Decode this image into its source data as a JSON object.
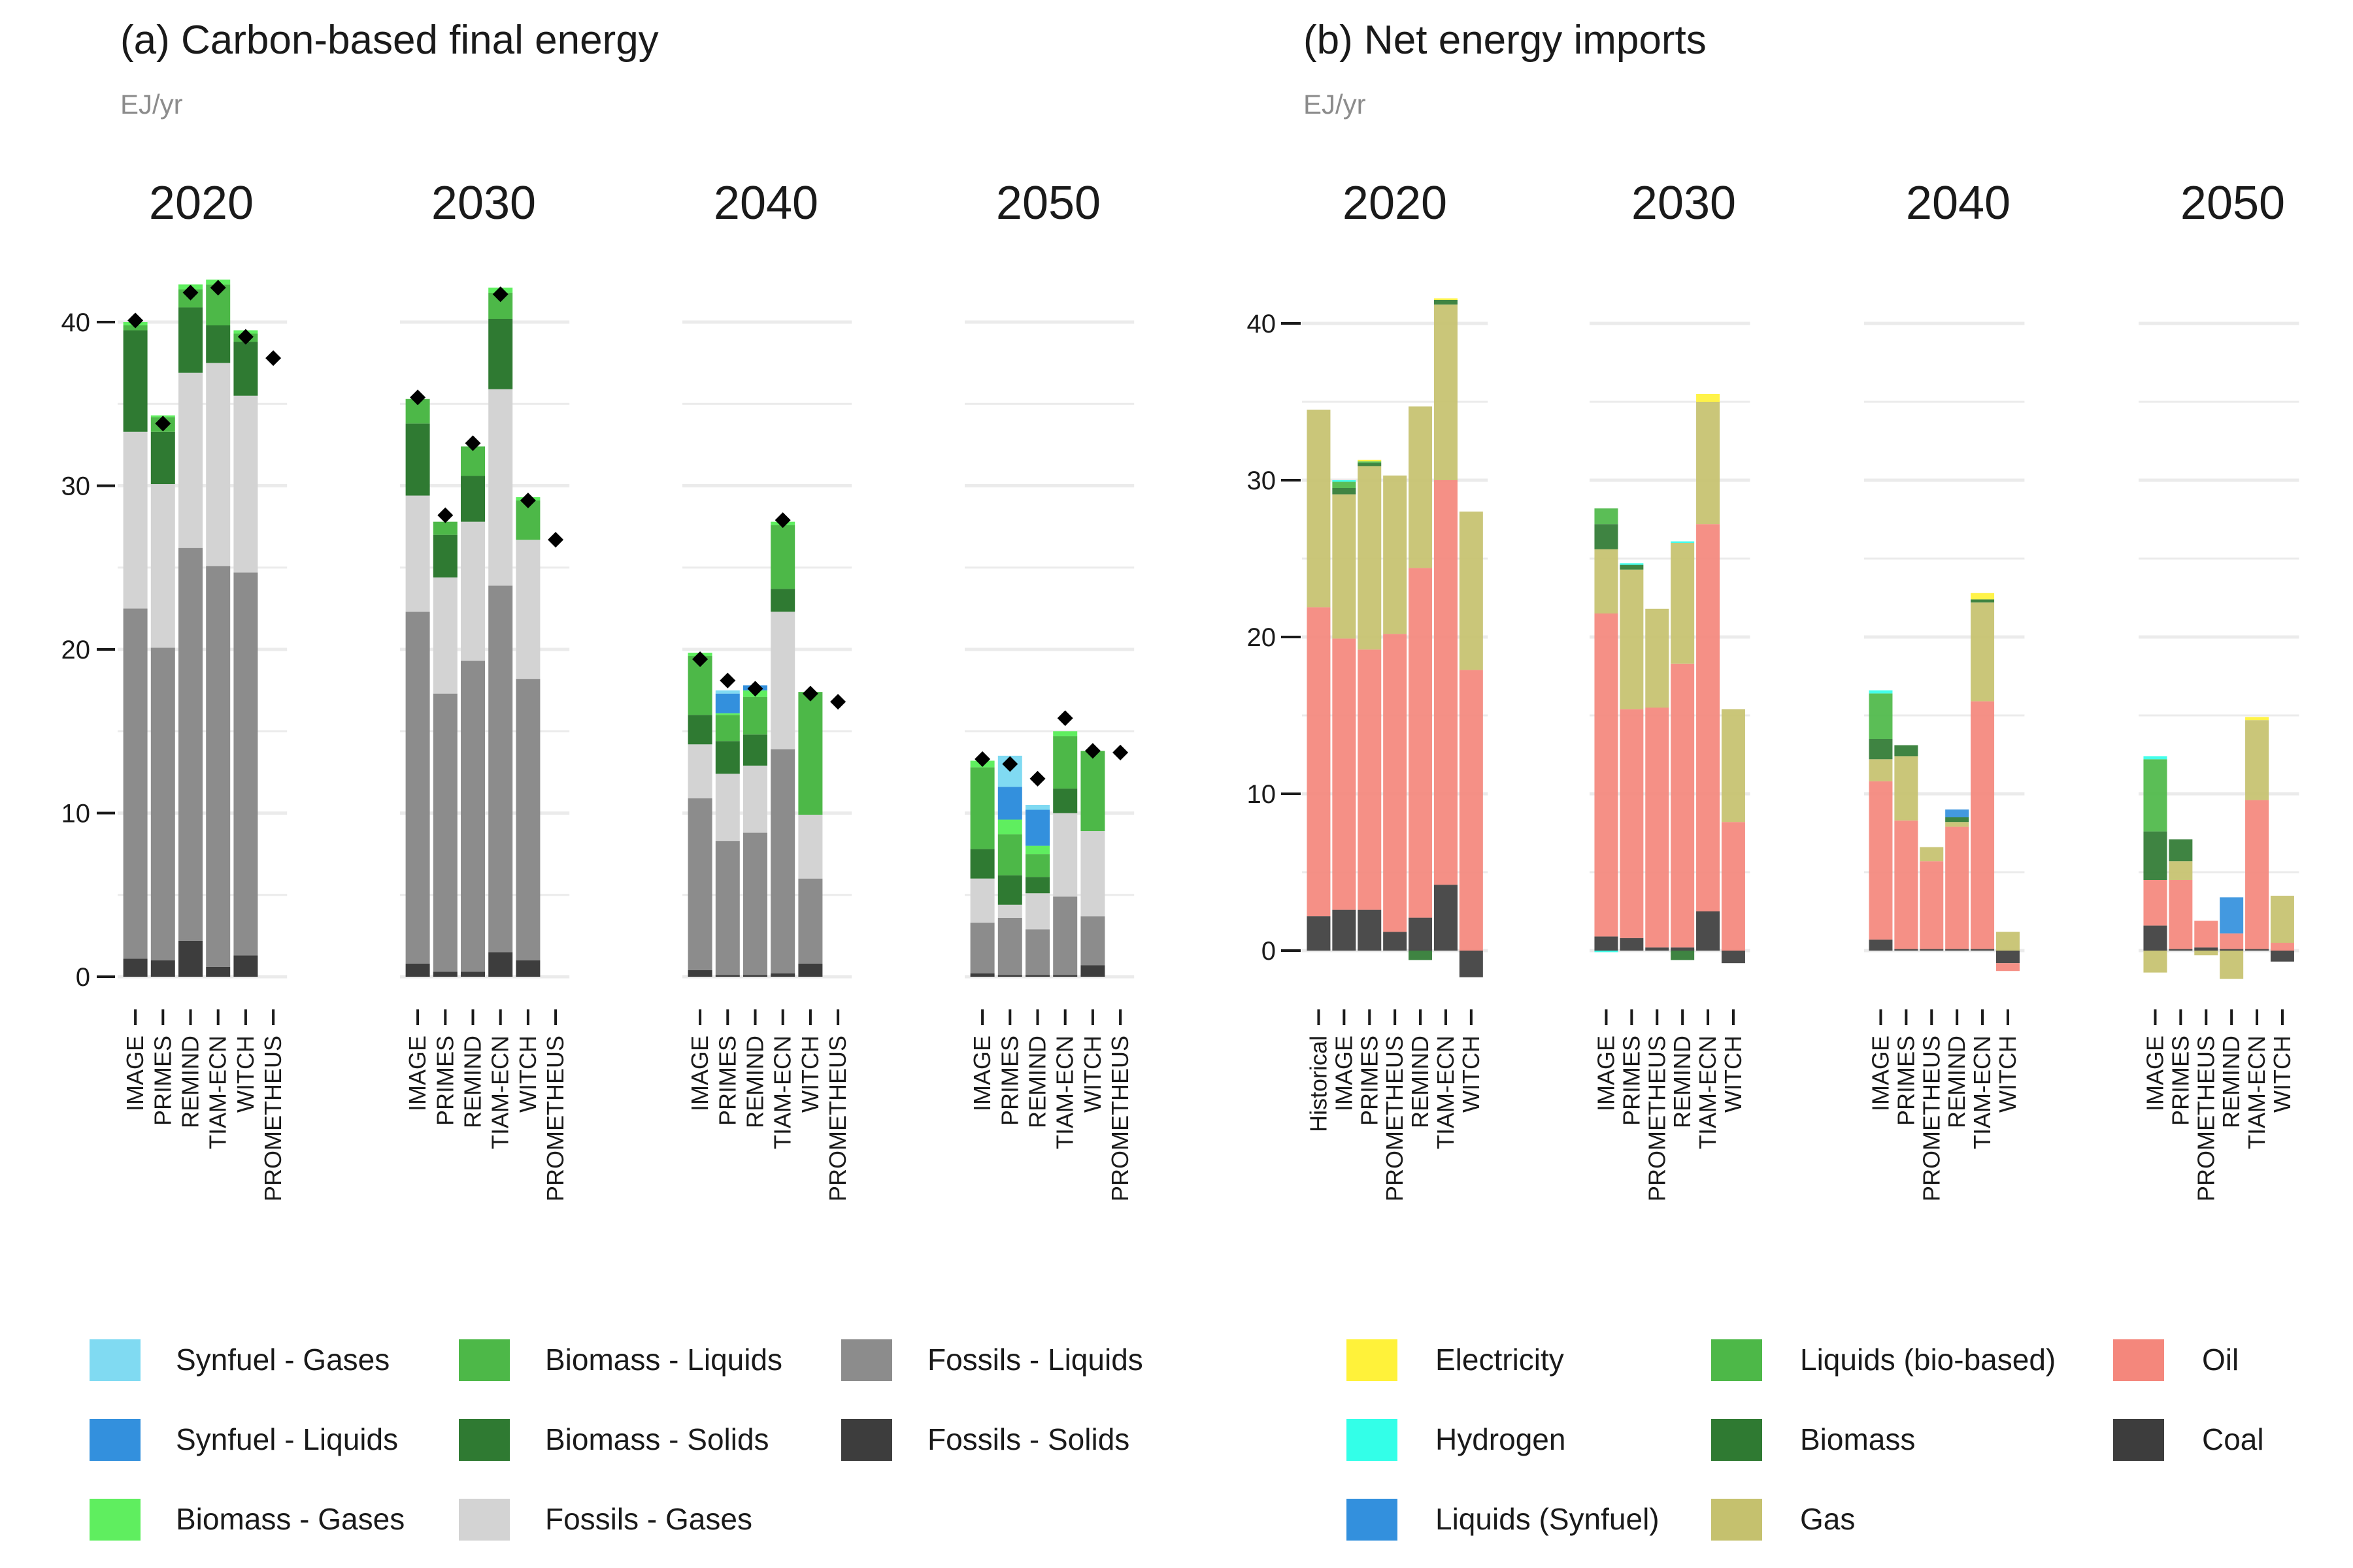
{
  "chart_data": [
    {
      "type": "bar",
      "stacked": true,
      "panel": "a",
      "title": "(a) Carbon-based final energy",
      "subtitle": "EJ/yr",
      "facets": [
        "2020",
        "2030",
        "2040",
        "2050"
      ],
      "categories": [
        "IMAGE",
        "PRIMES",
        "REMIND",
        "TIAM-ECN",
        "WITCH",
        "PROMETHEUS"
      ],
      "ylim": [
        0,
        40
      ],
      "yticks": [
        0,
        10,
        20,
        30,
        40
      ],
      "grid": true,
      "legend_position": "bottom",
      "total_marker": "diamond",
      "series": [
        {
          "name": "Fossils - Solids",
          "color": "#3d3d3d",
          "values": [
            [
              1.1,
              1.0,
              2.2,
              0.6,
              1.3,
              0
            ],
            [
              0.8,
              0.3,
              0.3,
              1.5,
              1.0,
              0
            ],
            [
              0.4,
              0.1,
              0.1,
              0.2,
              0.8,
              0
            ],
            [
              0.2,
              0.1,
              0.1,
              0.1,
              0.7,
              0
            ]
          ]
        },
        {
          "name": "Fossils - Liquids",
          "color": "#8c8c8c",
          "values": [
            [
              21.4,
              19.1,
              24.0,
              24.5,
              23.4,
              0
            ],
            [
              21.5,
              17.0,
              19.0,
              22.4,
              17.2,
              0
            ],
            [
              10.5,
              8.2,
              8.7,
              13.7,
              5.2,
              0
            ],
            [
              3.1,
              3.5,
              2.8,
              4.8,
              3.0,
              0
            ]
          ]
        },
        {
          "name": "Fossils - Gases",
          "color": "#d3d3d3",
          "values": [
            [
              10.8,
              10.0,
              10.7,
              12.4,
              10.8,
              0
            ],
            [
              7.1,
              7.1,
              8.5,
              12.0,
              8.5,
              0
            ],
            [
              3.3,
              4.1,
              4.1,
              8.4,
              3.9,
              0
            ],
            [
              2.7,
              0.8,
              2.2,
              5.1,
              5.2,
              0
            ]
          ]
        },
        {
          "name": "Biomass - Solids",
          "color": "#2f7a32",
          "values": [
            [
              6.2,
              3.2,
              4.0,
              2.3,
              3.3,
              0
            ],
            [
              4.4,
              2.6,
              2.8,
              4.3,
              0,
              0
            ],
            [
              1.8,
              2.0,
              1.9,
              1.4,
              0,
              0
            ],
            [
              1.8,
              1.8,
              1.0,
              1.5,
              0,
              0
            ]
          ]
        },
        {
          "name": "Biomass - Liquids",
          "color": "#4db848",
          "values": [
            [
              0.3,
              0.9,
              1.1,
              2.5,
              0.5,
              0
            ],
            [
              1.5,
              0.8,
              1.8,
              1.6,
              2.4,
              0
            ],
            [
              3.6,
              1.6,
              2.3,
              3.9,
              7.5,
              0
            ],
            [
              5.0,
              2.5,
              1.4,
              3.2,
              4.9,
              0
            ]
          ]
        },
        {
          "name": "Biomass - Gases",
          "color": "#5fee5f",
          "values": [
            [
              0.2,
              0.1,
              0.3,
              0.3,
              0.2,
              0
            ],
            [
              0,
              0,
              0,
              0.3,
              0.2,
              0
            ],
            [
              0.2,
              0.1,
              0.4,
              0.2,
              0,
              0
            ],
            [
              0.4,
              0.9,
              0.5,
              0.3,
              0,
              0
            ]
          ]
        },
        {
          "name": "Synfuel - Liquids",
          "color": "#3390dd",
          "values": [
            [
              0,
              0,
              0,
              0,
              0,
              0
            ],
            [
              0,
              0,
              0,
              0,
              0,
              0
            ],
            [
              0,
              1.2,
              0.3,
              0,
              0,
              0
            ],
            [
              0,
              2.0,
              2.2,
              0,
              0,
              0
            ]
          ]
        },
        {
          "name": "Synfuel - Gases",
          "color": "#80daf2",
          "values": [
            [
              0,
              0,
              0,
              0,
              0,
              0
            ],
            [
              0,
              0,
              0,
              0,
              0,
              0
            ],
            [
              0,
              0.2,
              0,
              0,
              0,
              0
            ],
            [
              0,
              1.9,
              0.3,
              0,
              0,
              0
            ]
          ]
        }
      ],
      "totals": [
        [
          40.1,
          33.8,
          41.8,
          42.1,
          39.1,
          37.8
        ],
        [
          35.4,
          28.2,
          32.6,
          41.7,
          29.1,
          26.7
        ],
        [
          19.4,
          18.1,
          17.6,
          27.9,
          17.3,
          16.8
        ],
        [
          13.3,
          13.0,
          12.1,
          15.8,
          13.8,
          13.7
        ]
      ]
    },
    {
      "type": "bar",
      "stacked": true,
      "panel": "b",
      "title": "(b) Net energy imports",
      "subtitle": "EJ/yr",
      "facets": [
        {
          "label": "2020",
          "categories": [
            "Historical",
            "IMAGE",
            "PRIMES",
            "PROMETHEUS",
            "REMIND",
            "TIAM-ECN",
            "WITCH"
          ]
        },
        {
          "label": "2030",
          "categories": [
            "IMAGE",
            "PRIMES",
            "PROMETHEUS",
            "REMIND",
            "TIAM-ECN",
            "WITCH"
          ]
        },
        {
          "label": "2040",
          "categories": [
            "IMAGE",
            "PRIMES",
            "PROMETHEUS",
            "REMIND",
            "TIAM-ECN",
            "WITCH"
          ]
        },
        {
          "label": "2050",
          "categories": [
            "IMAGE",
            "PRIMES",
            "PROMETHEUS",
            "REMIND",
            "TIAM-ECN",
            "WITCH"
          ]
        }
      ],
      "ylim": [
        -2,
        42
      ],
      "yticks": [
        0,
        10,
        20,
        30,
        40
      ],
      "grid": true,
      "legend_position": "bottom",
      "series": [
        {
          "name": "Coal",
          "color": "#3d3d3d",
          "values": [
            [
              2.2,
              2.6,
              2.6,
              1.2,
              2.1,
              4.2,
              -1.7
            ],
            [
              0.9,
              0.8,
              0.2,
              0.2,
              2.5,
              -0.8
            ],
            [
              0.7,
              0.1,
              0.1,
              0.1,
              0.1,
              -0.8
            ],
            [
              1.6,
              0.1,
              0.2,
              0.1,
              0.1,
              -0.7
            ]
          ]
        },
        {
          "name": "Oil",
          "color": "#f4877c",
          "values": [
            [
              19.7,
              17.3,
              16.6,
              19.0,
              22.3,
              25.8,
              17.9
            ],
            [
              20.6,
              14.6,
              15.3,
              18.1,
              24.7,
              8.2
            ],
            [
              10.1,
              8.2,
              5.6,
              7.8,
              15.8,
              -0.5
            ],
            [
              2.9,
              4.4,
              1.7,
              1.0,
              9.5,
              0.5
            ]
          ]
        },
        {
          "name": "Gas",
          "color": "#c5c16e",
          "values": [
            [
              12.6,
              9.2,
              11.7,
              10.1,
              10.3,
              11.2,
              10.1
            ],
            [
              4.1,
              8.9,
              6.3,
              7.7,
              7.8,
              7.2
            ],
            [
              1.4,
              4.1,
              0.9,
              0.3,
              6.3,
              1.2
            ],
            [
              -1.4,
              1.2,
              -0.3,
              -1.8,
              5.1,
              3.0
            ]
          ]
        },
        {
          "name": "Biomass",
          "color": "#2f7a32",
          "values": [
            [
              0,
              0.4,
              0.2,
              0,
              -0.6,
              0.3,
              0
            ],
            [
              1.6,
              0.3,
              0,
              -0.6,
              0,
              0
            ],
            [
              1.3,
              0.7,
              0,
              0.3,
              0.2,
              0
            ],
            [
              3.1,
              1.4,
              0,
              0,
              0,
              0
            ]
          ]
        },
        {
          "name": "Liquids (bio-based)",
          "color": "#4db848",
          "values": [
            [
              0,
              0.4,
              0.1,
              0,
              0,
              0,
              0
            ],
            [
              1.0,
              0,
              0,
              0,
              0,
              0
            ],
            [
              2.9,
              0,
              0,
              0,
              0,
              0
            ],
            [
              4.6,
              0,
              0,
              0,
              0,
              0
            ]
          ]
        },
        {
          "name": "Liquids (Synfuel)",
          "color": "#3390dd",
          "values": [
            [
              0,
              0,
              0,
              0,
              0,
              0,
              0
            ],
            [
              0,
              0,
              0,
              0,
              0,
              0
            ],
            [
              0,
              0,
              0,
              0.5,
              0,
              0
            ],
            [
              0,
              0,
              0,
              2.3,
              0,
              0
            ]
          ]
        },
        {
          "name": "Hydrogen",
          "color": "#33ffe8",
          "values": [
            [
              0,
              0.1,
              0,
              0,
              0,
              0,
              0
            ],
            [
              -0.1,
              0.1,
              0,
              0.1,
              0,
              0
            ],
            [
              0.2,
              0,
              0,
              0,
              0,
              0
            ],
            [
              0.2,
              0,
              0,
              0,
              0,
              0
            ]
          ]
        },
        {
          "name": "Electricity",
          "color": "#fff23a",
          "values": [
            [
              0,
              0,
              0.1,
              0,
              0,
              0.1,
              0
            ],
            [
              0,
              0,
              0,
              0,
              0.5,
              0
            ],
            [
              0,
              0,
              0,
              0,
              0.4,
              0
            ],
            [
              0,
              0,
              0,
              0,
              0.2,
              0
            ]
          ]
        }
      ]
    }
  ]
}
